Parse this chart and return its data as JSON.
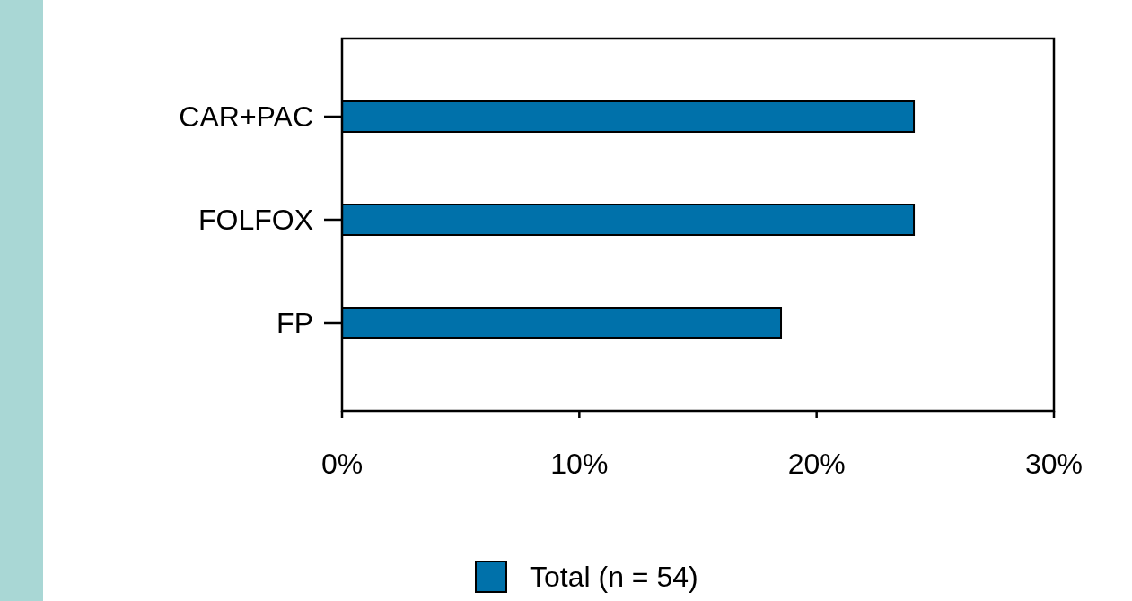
{
  "chart_data": {
    "type": "bar",
    "orientation": "horizontal",
    "categories": [
      "CAR+PAC",
      "FOLFOX",
      "FP"
    ],
    "series": [
      {
        "name": "Total (n = 54)",
        "color": "#0071aa",
        "values": [
          24.1,
          24.1,
          18.5
        ]
      }
    ],
    "xlim": [
      0,
      30
    ],
    "xticks": [
      {
        "value": 0,
        "label": "0%"
      },
      {
        "value": 10,
        "label": "10%"
      },
      {
        "value": 20,
        "label": "20%"
      },
      {
        "value": 30,
        "label": "30%"
      }
    ],
    "grid": false,
    "legend": "bottom"
  }
}
